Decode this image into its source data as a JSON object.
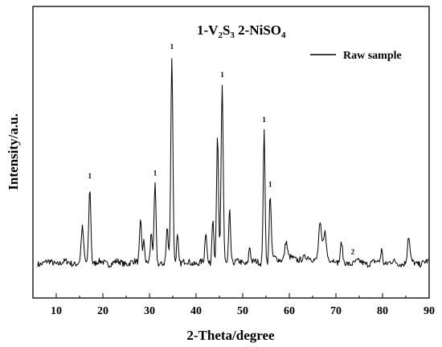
{
  "chart_data": {
    "type": "line",
    "title": "1-V2S3 2-NiSO4",
    "title_parts": {
      "p1": "1-V",
      "s1": "2",
      "p2": "S",
      "s2": "3",
      "p3": " 2-NiSO",
      "s3": "4"
    },
    "xlabel": "2-Theta/degree",
    "ylabel": "Intensity/a.u.",
    "xlim": [
      5,
      90
    ],
    "ylim": [
      0,
      100
    ],
    "xticks": [
      10,
      20,
      30,
      40,
      50,
      60,
      70,
      80,
      90
    ],
    "grid": false,
    "legend_position": "top-right",
    "series": [
      {
        "name": "Raw sample",
        "color": "#000000",
        "peaks": [
          {
            "x": 15.6,
            "y": 12,
            "w": 0.25
          },
          {
            "x": 17.2,
            "y": 27,
            "w": 0.22
          },
          {
            "x": 28.1,
            "y": 15,
            "w": 0.22
          },
          {
            "x": 28.8,
            "y": 8,
            "w": 0.2
          },
          {
            "x": 30.4,
            "y": 10,
            "w": 0.2
          },
          {
            "x": 31.2,
            "y": 28,
            "w": 0.2
          },
          {
            "x": 33.8,
            "y": 12,
            "w": 0.2
          },
          {
            "x": 34.8,
            "y": 73,
            "w": 0.22
          },
          {
            "x": 36.0,
            "y": 10,
            "w": 0.2
          },
          {
            "x": 42.1,
            "y": 11,
            "w": 0.2
          },
          {
            "x": 43.6,
            "y": 17,
            "w": 0.2
          },
          {
            "x": 44.6,
            "y": 45,
            "w": 0.2
          },
          {
            "x": 45.6,
            "y": 63,
            "w": 0.22
          },
          {
            "x": 47.2,
            "y": 19,
            "w": 0.2
          },
          {
            "x": 51.5,
            "y": 6,
            "w": 0.2
          },
          {
            "x": 54.6,
            "y": 47,
            "w": 0.2
          },
          {
            "x": 55.9,
            "y": 24,
            "w": 0.2
          },
          {
            "x": 59.3,
            "y": 6,
            "w": 0.25
          },
          {
            "x": 66.6,
            "y": 12,
            "w": 0.3
          },
          {
            "x": 67.6,
            "y": 9,
            "w": 0.3
          },
          {
            "x": 71.2,
            "y": 7,
            "w": 0.2
          },
          {
            "x": 79.8,
            "y": 5,
            "w": 0.2
          },
          {
            "x": 85.6,
            "y": 9,
            "w": 0.25
          }
        ]
      }
    ],
    "annotations": [
      {
        "text": "1",
        "x": 17.2
      },
      {
        "text": "1",
        "x": 31.2
      },
      {
        "text": "1",
        "x": 34.8
      },
      {
        "text": "1",
        "x": 45.6
      },
      {
        "text": "1",
        "x": 54.6
      },
      {
        "text": "1",
        "x": 55.9
      },
      {
        "text": "2",
        "x": 73.6
      }
    ]
  }
}
